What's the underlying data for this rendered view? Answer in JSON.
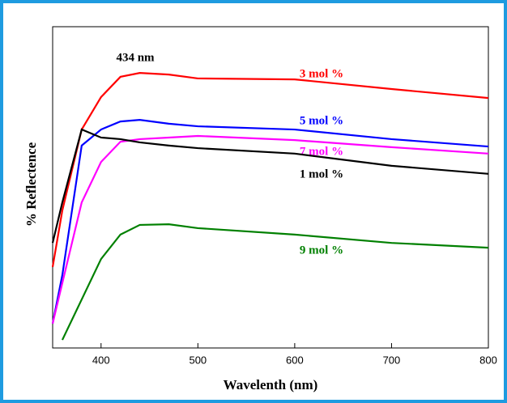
{
  "chart_data": {
    "type": "line",
    "x_label": "Wavelenth (nm)",
    "y_label": "% Reflectence",
    "annotation": "434 nm",
    "x": [
      350,
      360,
      380,
      400,
      420,
      440,
      470,
      500,
      600,
      700,
      800
    ],
    "series": [
      {
        "name": "3 mol %",
        "color": "#ff0000",
        "values": [
          25.2,
          42.8,
          68,
          78.1,
          84.4,
          85.6,
          85.1,
          83.9,
          83.6,
          80.6,
          77.8
        ]
      },
      {
        "name": "5 mol %",
        "color": "#0000ff",
        "values": [
          7.6,
          22.7,
          63,
          68,
          70.5,
          71,
          69.8,
          69,
          68,
          65,
          62.7
        ]
      },
      {
        "name": "7 mol %",
        "color": "#ff00ff",
        "values": [
          7.6,
          20.2,
          45.3,
          57.9,
          64.2,
          65,
          65.5,
          66,
          64.7,
          62.5,
          60.5
        ]
      },
      {
        "name": "1 mol %",
        "color": "#000000",
        "values": [
          32.7,
          45.3,
          68,
          65.5,
          65,
          64,
          63,
          62.2,
          60.5,
          56.7,
          54.2
        ]
      },
      {
        "name": "9 mol %",
        "color": "#008000",
        "values": [
          null,
          2.5,
          15.1,
          27.7,
          35.3,
          38.3,
          38.5,
          37.3,
          35.3,
          32.7,
          31.2
        ]
      }
    ],
    "xlim": [
      350,
      800
    ],
    "xticks": [
      400,
      500,
      600,
      700,
      800
    ],
    "ylim": [
      0,
      100
    ]
  }
}
